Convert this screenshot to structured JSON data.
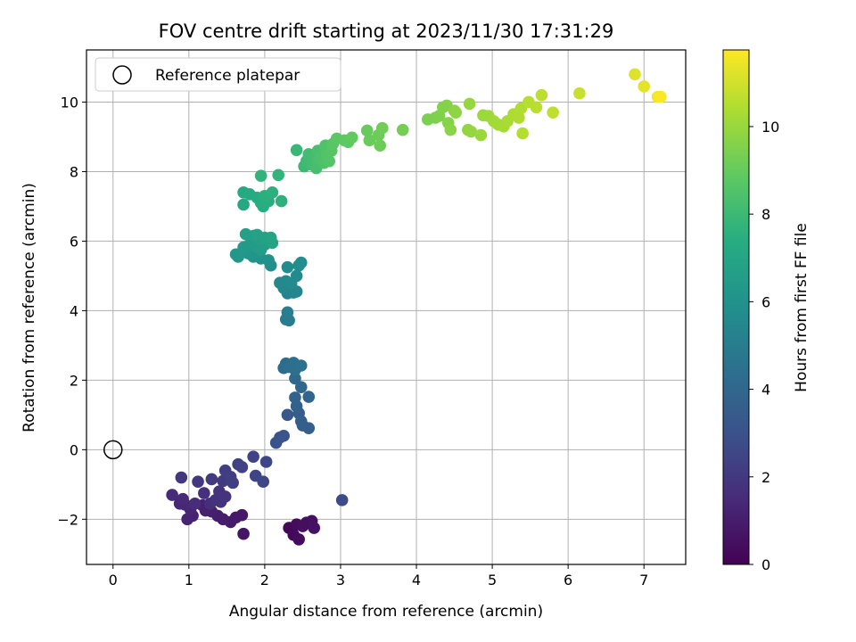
{
  "chart_data": {
    "type": "scatter",
    "title": "FOV centre drift starting at 2023/11/30 17:31:29",
    "xlabel": "Angular distance from reference (arcmin)",
    "ylabel": "Rotation from reference (arcmin)",
    "xlim": [
      -0.35,
      7.55
    ],
    "ylim": [
      -3.3,
      11.5
    ],
    "xticks": [
      0,
      1,
      2,
      3,
      4,
      5,
      6,
      7
    ],
    "yticks": [
      -2,
      0,
      2,
      4,
      6,
      8,
      10
    ],
    "grid": true,
    "legend": {
      "position": "top-left",
      "entries": [
        "Reference platepar"
      ]
    },
    "reference_point": {
      "x": 0,
      "y": 0,
      "label": "Reference platepar"
    },
    "colorbar": {
      "label": "Hours from first FF file",
      "colormap": "viridis",
      "range": [
        0,
        11.75
      ],
      "ticks": [
        0,
        2,
        4,
        6,
        8,
        10
      ]
    },
    "points": [
      {
        "x": 2.32,
        "y": -2.25,
        "h": 0.2
      },
      {
        "x": 2.38,
        "y": -2.45,
        "h": 0.3
      },
      {
        "x": 2.45,
        "y": -2.58,
        "h": 0.35
      },
      {
        "x": 2.42,
        "y": -2.15,
        "h": 0.4
      },
      {
        "x": 2.5,
        "y": -2.2,
        "h": 0.45
      },
      {
        "x": 2.55,
        "y": -2.1,
        "h": 0.5
      },
      {
        "x": 2.62,
        "y": -2.05,
        "h": 0.55
      },
      {
        "x": 2.65,
        "y": -2.25,
        "h": 0.6
      },
      {
        "x": 1.72,
        "y": -2.42,
        "h": 0.7
      },
      {
        "x": 1.7,
        "y": -1.88,
        "h": 0.8
      },
      {
        "x": 1.62,
        "y": -1.95,
        "h": 0.85
      },
      {
        "x": 1.55,
        "y": -2.08,
        "h": 0.9
      },
      {
        "x": 1.45,
        "y": -2.0,
        "h": 0.95
      },
      {
        "x": 1.38,
        "y": -1.9,
        "h": 1.0
      },
      {
        "x": 1.3,
        "y": -1.78,
        "h": 1.05
      },
      {
        "x": 1.22,
        "y": -1.75,
        "h": 1.1
      },
      {
        "x": 1.18,
        "y": -1.6,
        "h": 1.15
      },
      {
        "x": 1.05,
        "y": -1.9,
        "h": 1.2
      },
      {
        "x": 0.98,
        "y": -2.0,
        "h": 1.25
      },
      {
        "x": 1.02,
        "y": -1.72,
        "h": 1.3
      },
      {
        "x": 0.95,
        "y": -1.58,
        "h": 1.35
      },
      {
        "x": 0.88,
        "y": -1.55,
        "h": 1.4
      },
      {
        "x": 0.92,
        "y": -1.42,
        "h": 1.45
      },
      {
        "x": 0.78,
        "y": -1.3,
        "h": 1.5
      },
      {
        "x": 1.08,
        "y": -1.55,
        "h": 1.55
      },
      {
        "x": 1.28,
        "y": -1.55,
        "h": 1.6
      },
      {
        "x": 1.2,
        "y": -1.25,
        "h": 1.65
      },
      {
        "x": 1.35,
        "y": -1.45,
        "h": 1.7
      },
      {
        "x": 1.42,
        "y": -1.5,
        "h": 1.75
      },
      {
        "x": 1.4,
        "y": -1.2,
        "h": 1.8
      },
      {
        "x": 1.48,
        "y": -1.35,
        "h": 1.85
      },
      {
        "x": 1.12,
        "y": -0.92,
        "h": 1.95
      },
      {
        "x": 0.9,
        "y": -0.8,
        "h": 2.0
      },
      {
        "x": 1.3,
        "y": -0.85,
        "h": 2.05
      },
      {
        "x": 1.45,
        "y": -0.9,
        "h": 2.1
      },
      {
        "x": 1.48,
        "y": -0.6,
        "h": 2.15
      },
      {
        "x": 1.55,
        "y": -0.78,
        "h": 2.2
      },
      {
        "x": 1.58,
        "y": -0.95,
        "h": 2.25
      },
      {
        "x": 1.65,
        "y": -0.42,
        "h": 2.3
      },
      {
        "x": 1.7,
        "y": -0.5,
        "h": 2.35
      },
      {
        "x": 1.85,
        "y": -0.2,
        "h": 2.4
      },
      {
        "x": 1.88,
        "y": -0.75,
        "h": 2.45
      },
      {
        "x": 1.98,
        "y": -0.92,
        "h": 2.5
      },
      {
        "x": 2.02,
        "y": -0.35,
        "h": 2.55
      },
      {
        "x": 3.02,
        "y": -1.45,
        "h": 2.75
      },
      {
        "x": 2.15,
        "y": 0.2,
        "h": 3.0
      },
      {
        "x": 2.2,
        "y": 0.35,
        "h": 3.1
      },
      {
        "x": 2.25,
        "y": 0.4,
        "h": 3.15
      },
      {
        "x": 2.3,
        "y": 1.0,
        "h": 3.3
      },
      {
        "x": 2.45,
        "y": 1.05,
        "h": 3.4
      },
      {
        "x": 2.5,
        "y": 0.7,
        "h": 3.5
      },
      {
        "x": 2.58,
        "y": 0.62,
        "h": 3.55
      },
      {
        "x": 2.48,
        "y": 0.82,
        "h": 3.6
      },
      {
        "x": 2.42,
        "y": 1.25,
        "h": 3.7
      },
      {
        "x": 2.4,
        "y": 1.5,
        "h": 3.8
      },
      {
        "x": 2.58,
        "y": 1.52,
        "h": 3.9
      },
      {
        "x": 2.48,
        "y": 1.8,
        "h": 4.0
      },
      {
        "x": 2.4,
        "y": 2.05,
        "h": 4.1
      },
      {
        "x": 2.25,
        "y": 2.35,
        "h": 4.2
      },
      {
        "x": 2.28,
        "y": 2.48,
        "h": 4.25
      },
      {
        "x": 2.32,
        "y": 2.38,
        "h": 4.3
      },
      {
        "x": 2.38,
        "y": 2.5,
        "h": 4.35
      },
      {
        "x": 2.4,
        "y": 2.3,
        "h": 4.4
      },
      {
        "x": 2.48,
        "y": 2.42,
        "h": 4.45
      },
      {
        "x": 2.28,
        "y": 3.75,
        "h": 4.9
      },
      {
        "x": 2.32,
        "y": 3.72,
        "h": 4.95
      },
      {
        "x": 2.3,
        "y": 3.95,
        "h": 5.0
      },
      {
        "x": 2.3,
        "y": 4.5,
        "h": 5.3
      },
      {
        "x": 2.38,
        "y": 4.52,
        "h": 5.35
      },
      {
        "x": 2.42,
        "y": 4.55,
        "h": 5.4
      },
      {
        "x": 2.25,
        "y": 4.65,
        "h": 5.45
      },
      {
        "x": 2.2,
        "y": 4.8,
        "h": 5.5
      },
      {
        "x": 2.28,
        "y": 4.85,
        "h": 5.55
      },
      {
        "x": 2.35,
        "y": 4.78,
        "h": 5.6
      },
      {
        "x": 2.42,
        "y": 5.0,
        "h": 5.65
      },
      {
        "x": 2.3,
        "y": 5.25,
        "h": 5.7
      },
      {
        "x": 2.45,
        "y": 5.3,
        "h": 5.75
      },
      {
        "x": 2.48,
        "y": 5.38,
        "h": 5.8
      },
      {
        "x": 2.08,
        "y": 5.3,
        "h": 5.9
      },
      {
        "x": 2.05,
        "y": 5.45,
        "h": 5.95
      },
      {
        "x": 1.95,
        "y": 5.5,
        "h": 6.0
      },
      {
        "x": 1.9,
        "y": 5.6,
        "h": 6.05
      },
      {
        "x": 1.85,
        "y": 5.55,
        "h": 6.1
      },
      {
        "x": 1.78,
        "y": 5.65,
        "h": 6.15
      },
      {
        "x": 1.75,
        "y": 5.7,
        "h": 6.2
      },
      {
        "x": 1.65,
        "y": 5.55,
        "h": 6.25
      },
      {
        "x": 1.62,
        "y": 5.62,
        "h": 6.3
      },
      {
        "x": 1.72,
        "y": 5.82,
        "h": 6.35
      },
      {
        "x": 1.8,
        "y": 5.9,
        "h": 6.4
      },
      {
        "x": 1.88,
        "y": 5.85,
        "h": 6.45
      },
      {
        "x": 1.95,
        "y": 5.75,
        "h": 6.5
      },
      {
        "x": 2.0,
        "y": 5.9,
        "h": 6.55
      },
      {
        "x": 1.92,
        "y": 6.05,
        "h": 6.6
      },
      {
        "x": 1.85,
        "y": 6.15,
        "h": 6.65
      },
      {
        "x": 1.75,
        "y": 6.2,
        "h": 6.7
      },
      {
        "x": 1.9,
        "y": 6.18,
        "h": 6.75
      },
      {
        "x": 2.0,
        "y": 6.1,
        "h": 6.8
      },
      {
        "x": 2.1,
        "y": 5.95,
        "h": 6.85
      },
      {
        "x": 2.08,
        "y": 6.1,
        "h": 6.9
      },
      {
        "x": 1.72,
        "y": 7.05,
        "h": 7.1
      },
      {
        "x": 1.72,
        "y": 7.4,
        "h": 7.2
      },
      {
        "x": 1.8,
        "y": 7.35,
        "h": 7.25
      },
      {
        "x": 1.9,
        "y": 7.25,
        "h": 7.3
      },
      {
        "x": 1.95,
        "y": 7.1,
        "h": 7.35
      },
      {
        "x": 1.98,
        "y": 7.0,
        "h": 7.4
      },
      {
        "x": 2.05,
        "y": 7.15,
        "h": 7.45
      },
      {
        "x": 2.0,
        "y": 7.3,
        "h": 7.5
      },
      {
        "x": 2.1,
        "y": 7.4,
        "h": 7.55
      },
      {
        "x": 2.22,
        "y": 7.15,
        "h": 7.6
      },
      {
        "x": 1.95,
        "y": 7.88,
        "h": 7.7
      },
      {
        "x": 2.18,
        "y": 7.9,
        "h": 7.75
      },
      {
        "x": 2.42,
        "y": 8.62,
        "h": 7.9
      },
      {
        "x": 2.52,
        "y": 8.15,
        "h": 8.0
      },
      {
        "x": 2.55,
        "y": 8.3,
        "h": 8.05
      },
      {
        "x": 2.58,
        "y": 8.5,
        "h": 8.1
      },
      {
        "x": 2.62,
        "y": 8.2,
        "h": 8.15
      },
      {
        "x": 2.65,
        "y": 8.4,
        "h": 8.2
      },
      {
        "x": 2.68,
        "y": 8.1,
        "h": 8.25
      },
      {
        "x": 2.7,
        "y": 8.6,
        "h": 8.3
      },
      {
        "x": 2.72,
        "y": 8.35,
        "h": 8.35
      },
      {
        "x": 2.75,
        "y": 8.45,
        "h": 8.4
      },
      {
        "x": 2.78,
        "y": 8.25,
        "h": 8.45
      },
      {
        "x": 2.8,
        "y": 8.75,
        "h": 8.5
      },
      {
        "x": 2.82,
        "y": 8.5,
        "h": 8.55
      },
      {
        "x": 2.85,
        "y": 8.3,
        "h": 8.6
      },
      {
        "x": 2.88,
        "y": 8.6,
        "h": 8.65
      },
      {
        "x": 2.9,
        "y": 8.8,
        "h": 8.7
      },
      {
        "x": 2.95,
        "y": 8.95,
        "h": 8.75
      },
      {
        "x": 3.05,
        "y": 8.9,
        "h": 8.8
      },
      {
        "x": 3.1,
        "y": 8.85,
        "h": 8.85
      },
      {
        "x": 3.15,
        "y": 8.98,
        "h": 8.9
      },
      {
        "x": 3.35,
        "y": 9.18,
        "h": 9.0
      },
      {
        "x": 3.38,
        "y": 8.9,
        "h": 9.05
      },
      {
        "x": 3.5,
        "y": 9.05,
        "h": 9.1
      },
      {
        "x": 3.52,
        "y": 8.75,
        "h": 9.15
      },
      {
        "x": 3.55,
        "y": 9.25,
        "h": 9.2
      },
      {
        "x": 3.82,
        "y": 9.2,
        "h": 9.3
      },
      {
        "x": 4.15,
        "y": 9.5,
        "h": 9.4
      },
      {
        "x": 4.25,
        "y": 9.55,
        "h": 9.45
      },
      {
        "x": 4.3,
        "y": 9.6,
        "h": 9.5
      },
      {
        "x": 4.35,
        "y": 9.85,
        "h": 9.55
      },
      {
        "x": 4.4,
        "y": 9.9,
        "h": 9.6
      },
      {
        "x": 4.42,
        "y": 9.4,
        "h": 9.65
      },
      {
        "x": 4.45,
        "y": 9.2,
        "h": 9.7
      },
      {
        "x": 4.5,
        "y": 9.75,
        "h": 9.75
      },
      {
        "x": 4.52,
        "y": 9.7,
        "h": 9.8
      },
      {
        "x": 4.68,
        "y": 9.2,
        "h": 9.85
      },
      {
        "x": 4.72,
        "y": 9.15,
        "h": 9.9
      },
      {
        "x": 4.7,
        "y": 9.95,
        "h": 9.95
      },
      {
        "x": 4.85,
        "y": 9.05,
        "h": 10.0
      },
      {
        "x": 4.88,
        "y": 9.62,
        "h": 10.05
      },
      {
        "x": 4.95,
        "y": 9.6,
        "h": 10.1
      },
      {
        "x": 5.02,
        "y": 9.45,
        "h": 10.15
      },
      {
        "x": 5.08,
        "y": 9.35,
        "h": 10.2
      },
      {
        "x": 5.15,
        "y": 9.3,
        "h": 10.25
      },
      {
        "x": 5.2,
        "y": 9.45,
        "h": 10.3
      },
      {
        "x": 5.28,
        "y": 9.65,
        "h": 10.35
      },
      {
        "x": 5.35,
        "y": 9.55,
        "h": 10.4
      },
      {
        "x": 5.38,
        "y": 9.82,
        "h": 10.45
      },
      {
        "x": 5.4,
        "y": 9.1,
        "h": 10.5
      },
      {
        "x": 5.48,
        "y": 10.0,
        "h": 10.55
      },
      {
        "x": 5.58,
        "y": 9.85,
        "h": 10.6
      },
      {
        "x": 5.65,
        "y": 10.2,
        "h": 10.65
      },
      {
        "x": 5.8,
        "y": 9.7,
        "h": 10.7
      },
      {
        "x": 6.15,
        "y": 10.25,
        "h": 10.85
      },
      {
        "x": 6.88,
        "y": 10.8,
        "h": 11.2
      },
      {
        "x": 7.0,
        "y": 10.45,
        "h": 11.3
      },
      {
        "x": 7.18,
        "y": 10.15,
        "h": 11.6
      },
      {
        "x": 7.22,
        "y": 10.15,
        "h": 11.7
      }
    ]
  }
}
